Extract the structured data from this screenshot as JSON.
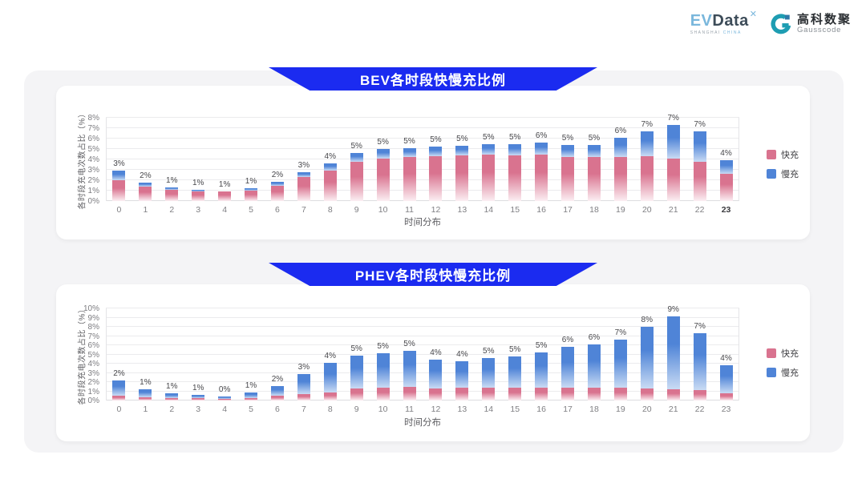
{
  "header": {
    "evdata_logo": {
      "ev": "EV",
      "data": "Data",
      "mark": "✕",
      "tagline_left": "SHANGHAI",
      "tagline_right": "CHINA"
    },
    "gausscode_logo": {
      "name_cn": "高科数聚",
      "name_en": "Gausscode"
    }
  },
  "colors": {
    "banner_blue": "#1b2bf0",
    "board_gray": "#f4f4f6",
    "fast_pink": "#d9738f",
    "slow_blue": "#4f84d7",
    "gausscode_teal": "#1e9db2"
  },
  "chart_data": [
    {
      "type": "bar",
      "stacked": true,
      "title": "BEV各时段快慢充比例",
      "xlabel": "时间分布",
      "ylabel": "各时段充电次数占比（%）",
      "ylim": [
        0,
        8
      ],
      "ytick_step": 1,
      "yticks": [
        "0%",
        "1%",
        "2%",
        "3%",
        "4%",
        "5%",
        "6%",
        "7%",
        "8%"
      ],
      "grid": true,
      "legend_position": "right",
      "legend": [
        "快充",
        "慢充"
      ],
      "categories": [
        "0",
        "1",
        "2",
        "3",
        "4",
        "5",
        "6",
        "7",
        "8",
        "9",
        "10",
        "11",
        "12",
        "13",
        "14",
        "15",
        "16",
        "17",
        "18",
        "19",
        "20",
        "21",
        "22",
        "23"
      ],
      "bar_labels": [
        "3%",
        "2%",
        "1%",
        "1%",
        "1%",
        "1%",
        "2%",
        "3%",
        "4%",
        "5%",
        "5%",
        "5%",
        "5%",
        "5%",
        "5%",
        "5%",
        "6%",
        "5%",
        "5%",
        "6%",
        "7%",
        "7%",
        "7%",
        "4%"
      ],
      "xtick_bold_last": true,
      "series": [
        {
          "name": "快充",
          "color": "#d9738f",
          "gradient": [
            "#d9738f",
            "#fbeff3"
          ],
          "values": [
            2.0,
            1.4,
            1.05,
            0.95,
            0.9,
            1.0,
            1.5,
            2.3,
            2.9,
            3.8,
            4.1,
            4.2,
            4.3,
            4.35,
            4.45,
            4.4,
            4.5,
            4.2,
            4.2,
            4.2,
            4.3,
            4.1,
            3.8,
            2.6
          ]
        },
        {
          "name": "慢充",
          "color": "#4f84d7",
          "gradient": [
            "#4f84d7",
            "#c9dbf4"
          ],
          "values": [
            0.9,
            0.4,
            0.25,
            0.15,
            0.05,
            0.2,
            0.35,
            0.5,
            0.7,
            0.8,
            0.9,
            0.9,
            0.9,
            0.95,
            1.0,
            1.05,
            1.1,
            1.2,
            1.2,
            1.9,
            2.4,
            3.2,
            2.9,
            1.3
          ]
        }
      ]
    },
    {
      "type": "bar",
      "stacked": true,
      "title": "PHEV各时段快慢充比例",
      "xlabel": "时间分布",
      "ylabel": "各时段充电次数占比（%）",
      "ylim": [
        0,
        10
      ],
      "ytick_step": 1,
      "yticks": [
        "0%",
        "1%",
        "2%",
        "3%",
        "4%",
        "5%",
        "6%",
        "7%",
        "8%",
        "9%",
        "10%"
      ],
      "grid": true,
      "legend_position": "right",
      "legend": [
        "快充",
        "慢充"
      ],
      "categories": [
        "0",
        "1",
        "2",
        "3",
        "4",
        "5",
        "6",
        "7",
        "8",
        "9",
        "10",
        "11",
        "12",
        "13",
        "14",
        "15",
        "16",
        "17",
        "18",
        "19",
        "20",
        "21",
        "22",
        "23"
      ],
      "bar_labels": [
        "2%",
        "1%",
        "1%",
        "1%",
        "0%",
        "1%",
        "2%",
        "3%",
        "4%",
        "5%",
        "5%",
        "5%",
        "4%",
        "4%",
        "5%",
        "5%",
        "5%",
        "6%",
        "6%",
        "7%",
        "8%",
        "9%",
        "7%",
        "4%"
      ],
      "xtick_bold_last": false,
      "series": [
        {
          "name": "快充",
          "color": "#d9738f",
          "gradient": [
            "#d9738f",
            "#fbeff3"
          ],
          "values": [
            0.5,
            0.35,
            0.3,
            0.25,
            0.2,
            0.3,
            0.5,
            0.7,
            0.9,
            1.3,
            1.4,
            1.5,
            1.3,
            1.35,
            1.35,
            1.4,
            1.4,
            1.4,
            1.4,
            1.35,
            1.3,
            1.25,
            1.15,
            0.8
          ]
        },
        {
          "name": "慢充",
          "color": "#4f84d7",
          "gradient": [
            "#4f84d7",
            "#c9dbf4"
          ],
          "values": [
            1.7,
            0.85,
            0.5,
            0.35,
            0.25,
            0.55,
            1.1,
            2.2,
            3.2,
            3.6,
            3.7,
            3.9,
            3.1,
            2.95,
            3.25,
            3.4,
            3.8,
            4.4,
            4.7,
            5.25,
            6.7,
            7.85,
            6.15,
            3.0
          ]
        }
      ]
    }
  ]
}
